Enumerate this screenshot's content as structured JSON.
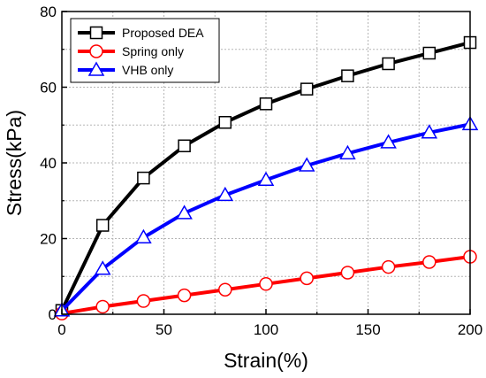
{
  "chart_data": {
    "type": "line",
    "xlabel": "Strain(%)",
    "ylabel": "Stress(kPa)",
    "xlim": [
      0,
      200
    ],
    "ylim": [
      0,
      80
    ],
    "x_ticks": [
      0,
      50,
      100,
      150,
      200
    ],
    "y_ticks": [
      0,
      20,
      40,
      60,
      80
    ],
    "grid": true,
    "legend_position": "top-left",
    "x": [
      0,
      20,
      40,
      60,
      80,
      100,
      120,
      140,
      160,
      180,
      200
    ],
    "series": [
      {
        "name": "Proposed DEA",
        "color": "#000000",
        "marker": "square",
        "values": [
          1,
          23.5,
          36,
          44.5,
          50.7,
          55.6,
          59.5,
          63,
          66.2,
          69,
          71.8
        ]
      },
      {
        "name": "Spring only",
        "color": "#ff0000",
        "marker": "circle",
        "values": [
          0.2,
          2,
          3.5,
          5,
          6.5,
          8,
          9.5,
          11,
          12.5,
          13.8,
          15.2
        ]
      },
      {
        "name": "VHB only",
        "color": "#0000ff",
        "marker": "triangle",
        "values": [
          1,
          12,
          20.3,
          26.7,
          31.5,
          35.5,
          39.3,
          42.5,
          45.4,
          48,
          50.2
        ]
      }
    ]
  }
}
